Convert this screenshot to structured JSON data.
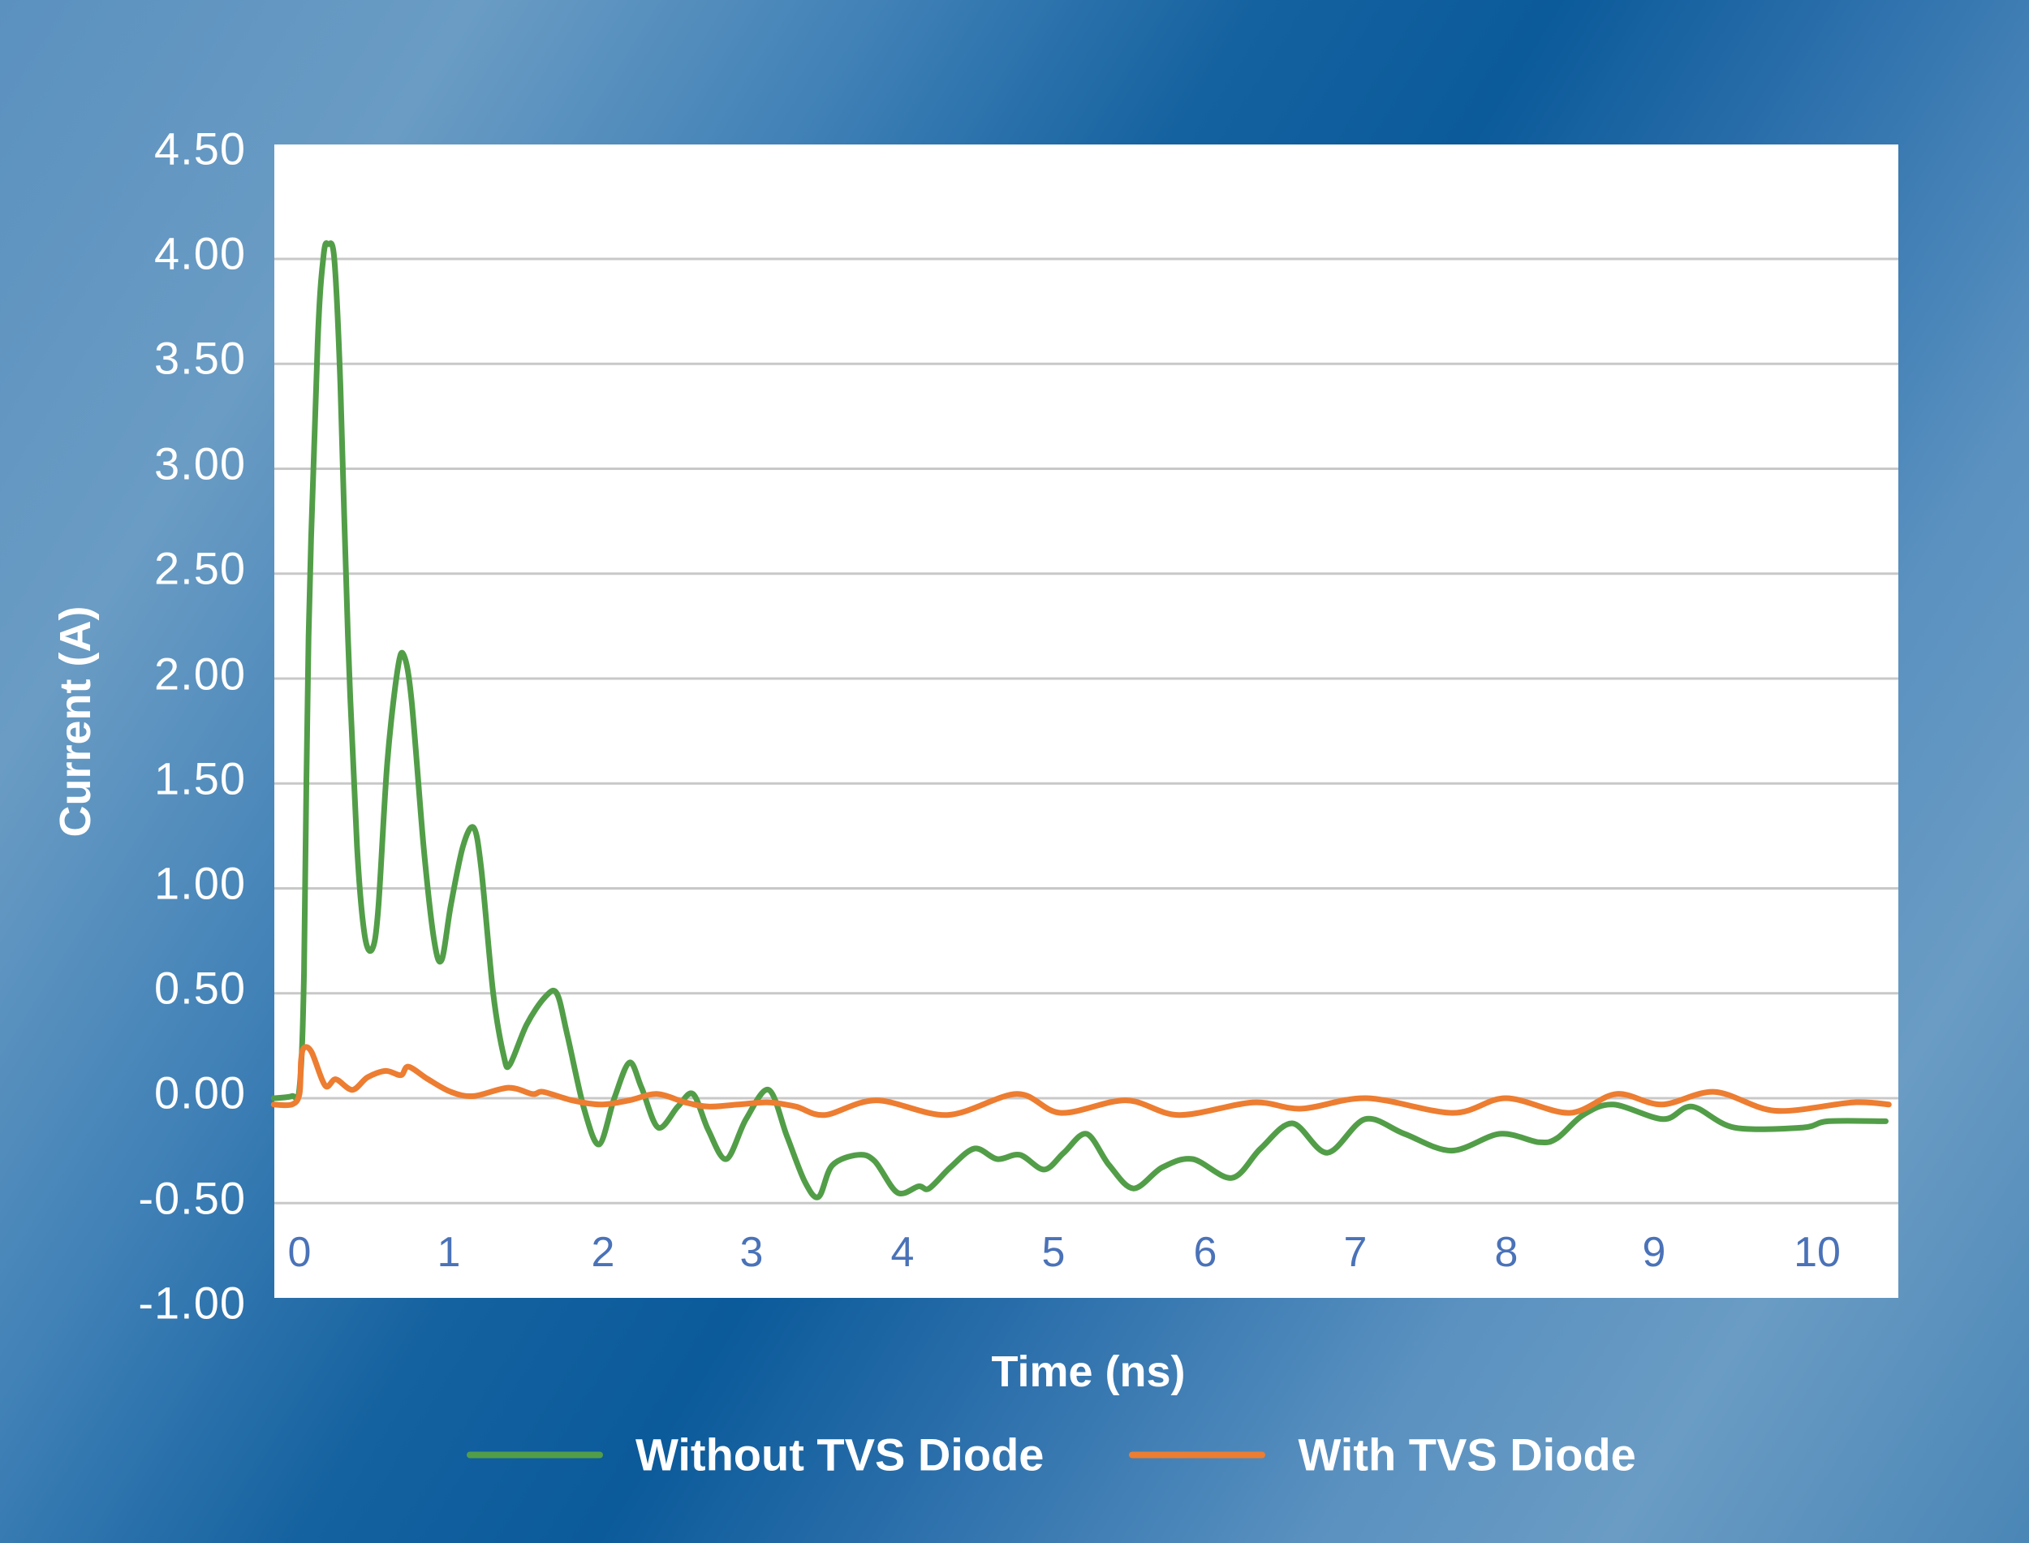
{
  "chart_data": {
    "type": "line",
    "title": "",
    "xlabel": "Time (ns)",
    "ylabel": "Current (A)",
    "xlim": [
      -0.17,
      10.55
    ],
    "ylim": [
      -1.0,
      4.5
    ],
    "grid": true,
    "legend_position": "bottom",
    "x_ticks": [
      "0",
      "1",
      "2",
      "3",
      "4",
      "5",
      "6",
      "7",
      "8",
      "9",
      "10"
    ],
    "y_ticks": [
      "4.50",
      "4.00",
      "3.50",
      "3.00",
      "2.50",
      "2.00",
      "1.50",
      "1.00",
      "0.50",
      "0.00",
      "-0.50",
      "-1.00"
    ],
    "series": [
      {
        "name": "Without TVS Diode",
        "color": "#529e48",
        "points": [
          [
            -0.17,
            0.0
          ],
          [
            -0.05,
            0.01
          ],
          [
            0.0,
            0.05
          ],
          [
            0.03,
            0.6
          ],
          [
            0.06,
            2.2
          ],
          [
            0.12,
            3.6
          ],
          [
            0.16,
            4.02
          ],
          [
            0.19,
            4.07
          ],
          [
            0.23,
            4.0
          ],
          [
            0.27,
            3.4
          ],
          [
            0.32,
            2.2
          ],
          [
            0.38,
            1.2
          ],
          [
            0.43,
            0.78
          ],
          [
            0.48,
            0.71
          ],
          [
            0.52,
            0.9
          ],
          [
            0.58,
            1.6
          ],
          [
            0.65,
            2.05
          ],
          [
            0.69,
            2.11
          ],
          [
            0.74,
            1.9
          ],
          [
            0.82,
            1.2
          ],
          [
            0.89,
            0.75
          ],
          [
            0.94,
            0.66
          ],
          [
            1.0,
            0.92
          ],
          [
            1.08,
            1.2
          ],
          [
            1.15,
            1.29
          ],
          [
            1.2,
            1.1
          ],
          [
            1.28,
            0.5
          ],
          [
            1.35,
            0.2
          ],
          [
            1.39,
            0.16
          ],
          [
            1.5,
            0.35
          ],
          [
            1.62,
            0.48
          ],
          [
            1.7,
            0.5
          ],
          [
            1.77,
            0.3
          ],
          [
            1.88,
            -0.05
          ],
          [
            1.98,
            -0.22
          ],
          [
            2.08,
            0.0
          ],
          [
            2.18,
            0.17
          ],
          [
            2.26,
            0.05
          ],
          [
            2.37,
            -0.14
          ],
          [
            2.5,
            -0.04
          ],
          [
            2.6,
            0.02
          ],
          [
            2.7,
            -0.15
          ],
          [
            2.82,
            -0.29
          ],
          [
            2.95,
            -0.1
          ],
          [
            3.1,
            0.04
          ],
          [
            3.22,
            -0.18
          ],
          [
            3.34,
            -0.4
          ],
          [
            3.43,
            -0.47
          ],
          [
            3.52,
            -0.32
          ],
          [
            3.69,
            -0.27
          ],
          [
            3.8,
            -0.3
          ],
          [
            3.95,
            -0.45
          ],
          [
            4.09,
            -0.42
          ],
          [
            4.16,
            -0.43
          ],
          [
            4.3,
            -0.33
          ],
          [
            4.46,
            -0.24
          ],
          [
            4.61,
            -0.29
          ],
          [
            4.76,
            -0.27
          ],
          [
            4.92,
            -0.34
          ],
          [
            5.05,
            -0.26
          ],
          [
            5.2,
            -0.17
          ],
          [
            5.35,
            -0.32
          ],
          [
            5.51,
            -0.43
          ],
          [
            5.7,
            -0.33
          ],
          [
            5.9,
            -0.29
          ],
          [
            6.16,
            -0.38
          ],
          [
            6.35,
            -0.24
          ],
          [
            6.56,
            -0.12
          ],
          [
            6.79,
            -0.26
          ],
          [
            7.04,
            -0.1
          ],
          [
            7.3,
            -0.17
          ],
          [
            7.61,
            -0.25
          ],
          [
            7.93,
            -0.17
          ],
          [
            8.19,
            -0.21
          ],
          [
            8.31,
            -0.19
          ],
          [
            8.48,
            -0.08
          ],
          [
            8.68,
            -0.03
          ],
          [
            9.01,
            -0.1
          ],
          [
            9.2,
            -0.04
          ],
          [
            9.48,
            -0.14
          ],
          [
            9.93,
            -0.14
          ],
          [
            10.1,
            -0.11
          ],
          [
            10.48,
            -0.11
          ]
        ]
      },
      {
        "name": "With TVS Diode",
        "color": "#ed7d31",
        "points": [
          [
            -0.17,
            -0.03
          ],
          [
            -0.05,
            -0.03
          ],
          [
            0.0,
            0.02
          ],
          [
            0.01,
            0.18
          ],
          [
            0.03,
            0.24
          ],
          [
            0.08,
            0.22
          ],
          [
            0.17,
            0.06
          ],
          [
            0.24,
            0.09
          ],
          [
            0.35,
            0.04
          ],
          [
            0.45,
            0.1
          ],
          [
            0.57,
            0.13
          ],
          [
            0.67,
            0.11
          ],
          [
            0.72,
            0.15
          ],
          [
            0.85,
            0.09
          ],
          [
            1.0,
            0.03
          ],
          [
            1.15,
            0.01
          ],
          [
            1.38,
            0.05
          ],
          [
            1.54,
            0.02
          ],
          [
            1.61,
            0.03
          ],
          [
            1.8,
            -0.01
          ],
          [
            1.99,
            -0.03
          ],
          [
            2.18,
            -0.01
          ],
          [
            2.36,
            0.02
          ],
          [
            2.55,
            -0.02
          ],
          [
            2.7,
            -0.04
          ],
          [
            2.9,
            -0.03
          ],
          [
            3.1,
            -0.02
          ],
          [
            3.28,
            -0.04
          ],
          [
            3.47,
            -0.08
          ],
          [
            3.81,
            -0.01
          ],
          [
            4.28,
            -0.08
          ],
          [
            4.74,
            0.02
          ],
          [
            5.03,
            -0.07
          ],
          [
            5.46,
            -0.01
          ],
          [
            5.81,
            -0.08
          ],
          [
            6.3,
            -0.02
          ],
          [
            6.62,
            -0.05
          ],
          [
            7.05,
            0.0
          ],
          [
            7.62,
            -0.07
          ],
          [
            7.97,
            0.0
          ],
          [
            8.39,
            -0.07
          ],
          [
            8.7,
            0.02
          ],
          [
            9.0,
            -0.03
          ],
          [
            9.35,
            0.03
          ],
          [
            9.75,
            -0.06
          ],
          [
            10.26,
            -0.02
          ],
          [
            10.5,
            -0.03
          ]
        ]
      }
    ]
  },
  "axes": {
    "y_title": "Current (A)",
    "x_title": "Time (ns)",
    "y_tick_labels": [
      "4.50",
      "4.00",
      "3.50",
      "3.00",
      "2.50",
      "2.00",
      "1.50",
      "1.00",
      "0.50",
      "0.00",
      "-0.50",
      "-1.00"
    ],
    "x_tick_labels": [
      "0",
      "1",
      "2",
      "3",
      "4",
      "5",
      "6",
      "7",
      "8",
      "9",
      "10"
    ],
    "x_tick_color": "#4a72b8",
    "gridline_color": "#c8c8c8"
  },
  "legend": {
    "items": [
      {
        "label": "Without TVS Diode",
        "color": "#529e48"
      },
      {
        "label": "With TVS Diode",
        "color": "#ed7d31"
      }
    ]
  }
}
